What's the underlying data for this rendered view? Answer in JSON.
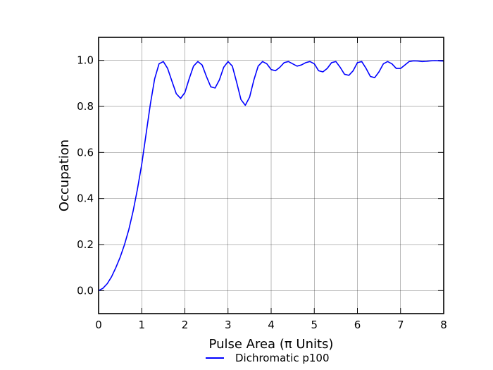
{
  "chart_data": {
    "type": "line",
    "title": "",
    "xlabel": "Pulse Area (π Units)",
    "ylabel": "Occupation",
    "xlim": [
      0,
      8
    ],
    "ylim": [
      -0.1,
      1.1
    ],
    "xticks": [
      "0",
      "1",
      "2",
      "3",
      "4",
      "5",
      "6",
      "7",
      "8"
    ],
    "yticks": [
      "0.0",
      "0.2",
      "0.4",
      "0.6",
      "0.8",
      "1.0"
    ],
    "grid": true,
    "legend_position": "bottom-center",
    "series": [
      {
        "name": "Dichromatic p100",
        "color": "#0000ff",
        "x": [
          0,
          0.1,
          0.2,
          0.3,
          0.4,
          0.5,
          0.6,
          0.7,
          0.8,
          0.9,
          1.0,
          1.1,
          1.2,
          1.3,
          1.4,
          1.5,
          1.6,
          1.7,
          1.8,
          1.9,
          2.0,
          2.1,
          2.2,
          2.3,
          2.4,
          2.5,
          2.6,
          2.7,
          2.8,
          2.9,
          3.0,
          3.1,
          3.2,
          3.3,
          3.4,
          3.5,
          3.6,
          3.7,
          3.8,
          3.9,
          4.0,
          4.1,
          4.2,
          4.3,
          4.4,
          4.5,
          4.6,
          4.7,
          4.8,
          4.9,
          5.0,
          5.1,
          5.2,
          5.3,
          5.4,
          5.5,
          5.6,
          5.7,
          5.8,
          5.9,
          6.0,
          6.1,
          6.2,
          6.3,
          6.4,
          6.5,
          6.6,
          6.7,
          6.8,
          6.9,
          7.0,
          7.1,
          7.2,
          7.3,
          7.4,
          7.5,
          7.6,
          7.7,
          7.8,
          7.9,
          8.0
        ],
        "y": [
          0.0,
          0.01,
          0.03,
          0.06,
          0.1,
          0.145,
          0.2,
          0.265,
          0.345,
          0.44,
          0.55,
          0.68,
          0.81,
          0.92,
          0.985,
          0.995,
          0.965,
          0.91,
          0.855,
          0.835,
          0.86,
          0.92,
          0.975,
          0.995,
          0.98,
          0.93,
          0.885,
          0.88,
          0.915,
          0.97,
          0.995,
          0.975,
          0.905,
          0.83,
          0.805,
          0.84,
          0.915,
          0.975,
          0.995,
          0.985,
          0.96,
          0.955,
          0.97,
          0.99,
          0.995,
          0.985,
          0.975,
          0.98,
          0.99,
          0.995,
          0.985,
          0.955,
          0.95,
          0.965,
          0.99,
          0.995,
          0.97,
          0.94,
          0.935,
          0.955,
          0.99,
          0.995,
          0.965,
          0.93,
          0.925,
          0.95,
          0.985,
          0.995,
          0.985,
          0.965,
          0.965,
          0.98,
          0.995,
          0.998,
          0.997,
          0.995,
          0.996,
          0.998,
          0.999,
          0.998,
          0.997
        ]
      }
    ]
  }
}
